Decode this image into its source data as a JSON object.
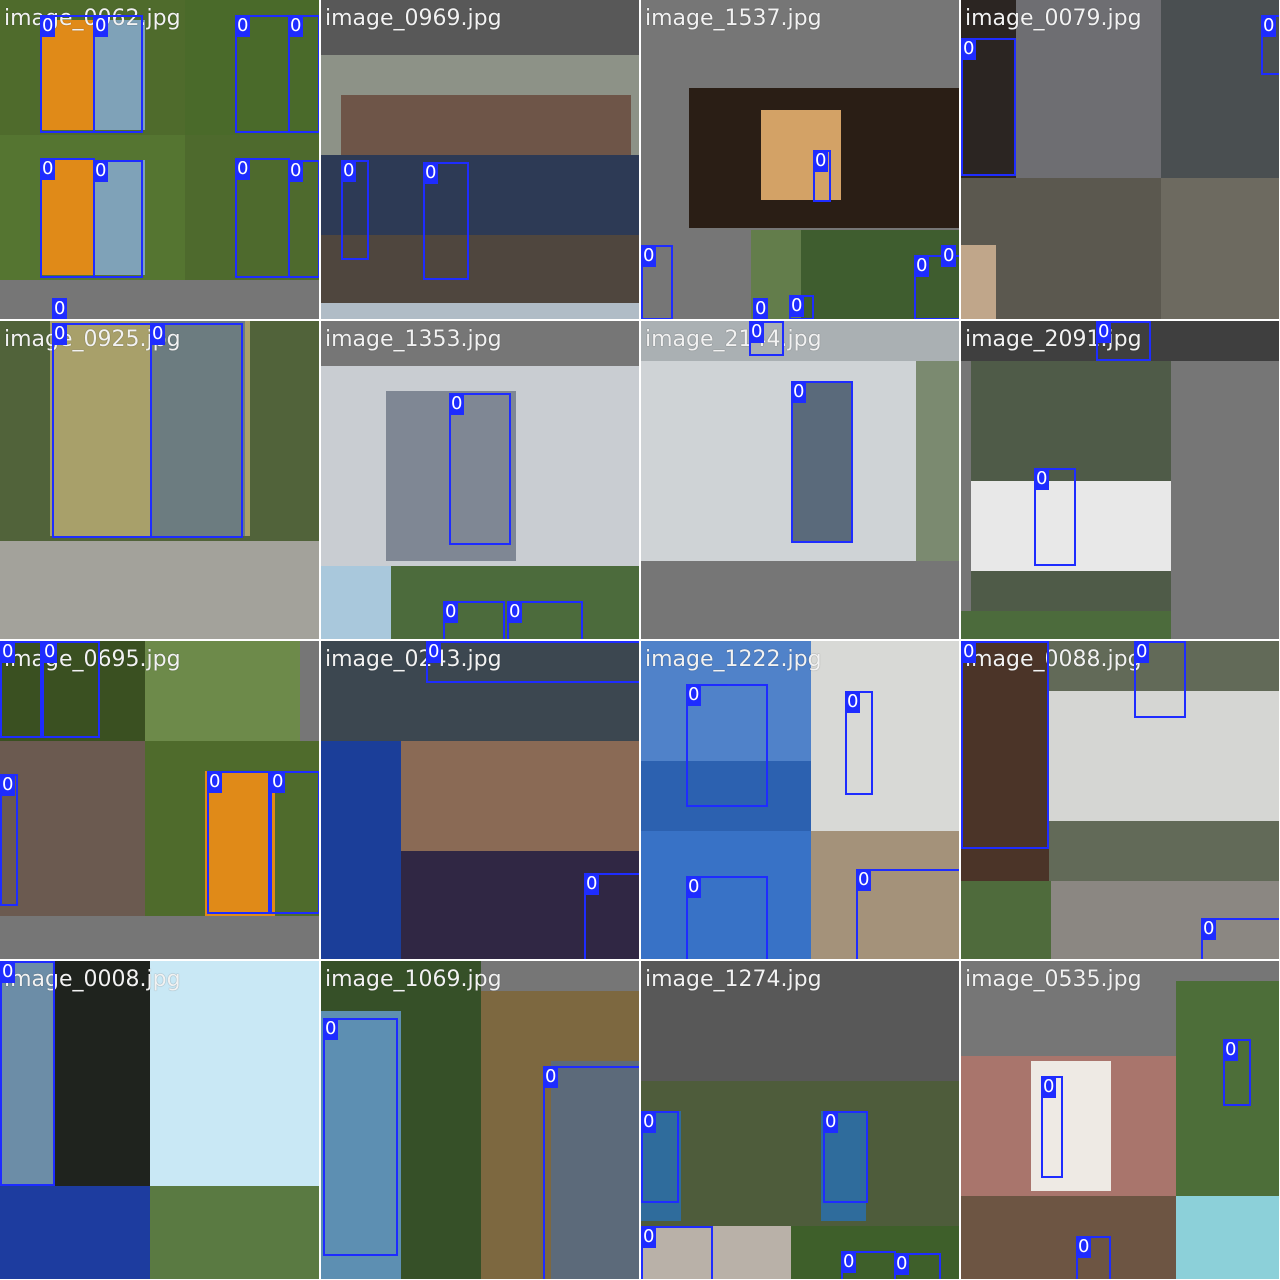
{
  "colors": {
    "box": "#1e2cff",
    "label_bg": "#1e2cff",
    "label_text": "#ffffff",
    "padding_gray": "#767676",
    "caption_text": "#f2f2f2"
  },
  "tiles": [
    {
      "caption": "image_0062.jpg"
    },
    {
      "caption": "image_0969.jpg"
    },
    {
      "caption": "image_1537.jpg"
    },
    {
      "caption": "image_0079.jpg"
    },
    {
      "caption": "image_0925.jpg"
    },
    {
      "caption": "image_1353.jpg"
    },
    {
      "caption": "image_2144.jpg"
    },
    {
      "caption": "image_2091.jpg"
    },
    {
      "caption": "image_0695.jpg"
    },
    {
      "caption": "image_0243.jpg"
    },
    {
      "caption": "image_1222.jpg"
    },
    {
      "caption": "image_0088.jpg"
    },
    {
      "caption": "image_0008.jpg"
    },
    {
      "caption": "image_1069.jpg"
    },
    {
      "caption": "image_1274.jpg"
    },
    {
      "caption": "image_0535.jpg"
    }
  ],
  "detection_class": "0"
}
